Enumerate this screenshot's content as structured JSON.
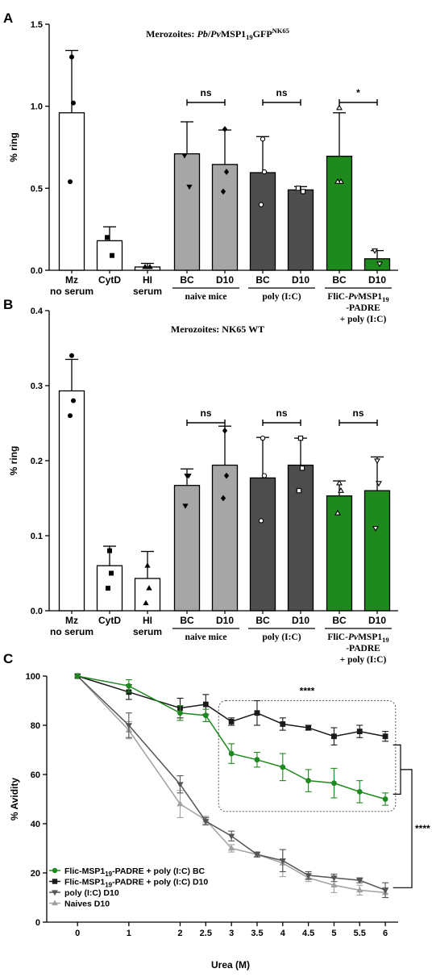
{
  "chart_data": [
    {
      "panel": "A",
      "type": "bar",
      "title": "Merozoites: Pb/PvMSP1₁₉GFPᴺᴷ⁶⁵",
      "title_parts": [
        "Merozoites: ",
        "Pb",
        "/",
        "Pv",
        "MSP1",
        "19",
        "GFP",
        "NK65"
      ],
      "ylabel": "% ring",
      "ylim": [
        0,
        1.5
      ],
      "yticks": [
        "0.0",
        "0.5",
        "1.0",
        "1.5"
      ],
      "categories": [
        {
          "label": "Mz",
          "label2": "no serum",
          "value": 0.96,
          "err": 0.38,
          "color": "#ffffff",
          "marker": "circle",
          "points": [
            1.3,
            1.02,
            0.54
          ]
        },
        {
          "label": "CytD",
          "label2": "",
          "value": 0.18,
          "err": 0.085,
          "color": "#ffffff",
          "marker": "square",
          "points": [
            0.2,
            0.09
          ]
        },
        {
          "label": "HI",
          "label2": "serum",
          "value": 0.02,
          "err": 0.022,
          "color": "#ffffff",
          "marker": "triangle",
          "points": [
            0.02,
            0.02
          ]
        },
        {
          "label": "BC",
          "label2": "",
          "value": 0.71,
          "err": 0.195,
          "color": "#a6a6a6",
          "marker": "tri-down",
          "points": [
            0.7,
            0.51
          ]
        },
        {
          "label": "D10",
          "label2": "",
          "value": 0.645,
          "err": 0.21,
          "color": "#a6a6a6",
          "marker": "diamond",
          "points": [
            0.86,
            0.6,
            0.48
          ]
        },
        {
          "label": "BC",
          "label2": "",
          "value": 0.595,
          "err": 0.22,
          "color": "#4d4d4d",
          "marker": "open-circle",
          "points": [
            0.8,
            0.6,
            0.4
          ]
        },
        {
          "label": "D10",
          "label2": "",
          "value": 0.49,
          "err": 0.02,
          "color": "#4d4d4d",
          "marker": "open-square",
          "points": [
            0.5,
            0.48
          ]
        },
        {
          "label": "BC",
          "label2": "",
          "value": 0.695,
          "err": 0.265,
          "color": "#1e8a1e",
          "marker": "open-triangle",
          "points": [
            0.99,
            0.54,
            0.54
          ]
        },
        {
          "label": "D10",
          "label2": "",
          "value": 0.07,
          "err": 0.05,
          "color": "#1e8a1e",
          "marker": "open-tri-down",
          "points": [
            0.12,
            0.04
          ]
        }
      ],
      "groups": [
        {
          "text": "naive mice",
          "from": 3,
          "to": 4
        },
        {
          "text": "poly (I:C)",
          "from": 5,
          "to": 6
        },
        {
          "text": "FliC-PvMSP1₁₉ -PADRE + poly (I:C)",
          "from": 7,
          "to": 8,
          "line1": [
            "FliC-",
            "Pv",
            "MSP1",
            "19"
          ],
          "line2": "-PADRE",
          "line3": "+ poly (I:C)"
        }
      ],
      "significance": [
        {
          "from": 3,
          "to": 4,
          "text": "ns"
        },
        {
          "from": 5,
          "to": 6,
          "text": "ns"
        },
        {
          "from": 7,
          "to": 8,
          "text": "*"
        }
      ]
    },
    {
      "panel": "B",
      "type": "bar",
      "title": "Merozoites: NK65 WT",
      "ylabel": "% ring",
      "ylim": [
        0,
        0.4
      ],
      "yticks": [
        "0.0",
        "0.1",
        "0.2",
        "0.3",
        "0.4"
      ],
      "categories": [
        {
          "label": "Mz",
          "label2": "no serum",
          "value": 0.293,
          "err": 0.042,
          "color": "#ffffff",
          "marker": "circle",
          "points": [
            0.34,
            0.28,
            0.26
          ]
        },
        {
          "label": "CytD",
          "label2": "",
          "value": 0.06,
          "err": 0.026,
          "color": "#ffffff",
          "marker": "square",
          "points": [
            0.08,
            0.05,
            0.03
          ]
        },
        {
          "label": "HI",
          "label2": "serum",
          "value": 0.043,
          "err": 0.036,
          "color": "#ffffff",
          "marker": "triangle",
          "points": [
            0.06,
            0.03,
            0.01
          ]
        },
        {
          "label": "BC",
          "label2": "",
          "value": 0.167,
          "err": 0.022,
          "color": "#a6a6a6",
          "marker": "tri-down",
          "points": [
            0.18,
            0.18,
            0.14
          ]
        },
        {
          "label": "D10",
          "label2": "",
          "value": 0.194,
          "err": 0.052,
          "color": "#a6a6a6",
          "marker": "diamond",
          "points": [
            0.24,
            0.18,
            0.15
          ]
        },
        {
          "label": "BC",
          "label2": "",
          "value": 0.177,
          "err": 0.054,
          "color": "#4d4d4d",
          "marker": "open-circle",
          "points": [
            0.23,
            0.18,
            0.12
          ]
        },
        {
          "label": "D10",
          "label2": "",
          "value": 0.194,
          "err": 0.036,
          "color": "#4d4d4d",
          "marker": "open-square",
          "points": [
            0.23,
            0.19,
            0.16
          ]
        },
        {
          "label": "BC",
          "label2": "",
          "value": 0.153,
          "err": 0.02,
          "color": "#1e8a1e",
          "marker": "open-triangle",
          "points": [
            0.17,
            0.16,
            0.13
          ]
        },
        {
          "label": "D10",
          "label2": "",
          "value": 0.16,
          "err": 0.045,
          "color": "#1e8a1e",
          "marker": "open-tri-down",
          "points": [
            0.2,
            0.17,
            0.11
          ]
        }
      ],
      "groups": [
        {
          "text": "naive mice",
          "from": 3,
          "to": 4
        },
        {
          "text": "poly (I:C)",
          "from": 5,
          "to": 6
        },
        {
          "text": "FliC-PvMSP1₁₉ -PADRE + poly (I:C)",
          "from": 7,
          "to": 8,
          "line1": [
            "FliC-",
            "Pv",
            "MSP1",
            "19"
          ],
          "line2": "-PADRE",
          "line3": "+ poly (I:C)"
        }
      ],
      "significance": [
        {
          "from": 3,
          "to": 4,
          "text": "ns"
        },
        {
          "from": 5,
          "to": 6,
          "text": "ns"
        },
        {
          "from": 7,
          "to": 8,
          "text": "ns"
        }
      ]
    },
    {
      "panel": "C",
      "type": "line",
      "xlabel": "Urea (M)",
      "ylabel": "% Avidity",
      "xlim": [
        -0.6,
        6.25
      ],
      "ylim": [
        0,
        100
      ],
      "xticks": [
        0,
        1,
        2,
        2.5,
        3,
        3.5,
        4,
        4.5,
        5,
        5.5,
        6
      ],
      "yticks": [
        0,
        20,
        40,
        60,
        80,
        100
      ],
      "x": [
        0,
        1,
        2,
        2.5,
        3,
        3.5,
        4,
        4.5,
        5,
        5.5,
        6
      ],
      "series": [
        {
          "name": "Flic-MSP1₁₉-PADRE + poly (I:C) BC",
          "legend_parts": [
            "Flic-MSP1",
            "19",
            "-PADRE + poly (I:C) BC"
          ],
          "color": "#1e8a1e",
          "marker": "circle",
          "values": [
            100,
            96,
            85,
            84,
            68.5,
            66,
            63,
            57.5,
            56.5,
            53,
            50
          ],
          "err": [
            0,
            2.5,
            3,
            2.5,
            4,
            3,
            5.5,
            4.5,
            6,
            4.5,
            2.5
          ]
        },
        {
          "name": "Flic-MSP1₁₉-PADRE + poly (I:C) D10",
          "legend_parts": [
            "Flic-MSP1",
            "19",
            "-PADRE + poly (I:C) D10"
          ],
          "color": "#1a1a1a",
          "marker": "square",
          "values": [
            100,
            93.5,
            87,
            88.5,
            81.5,
            85,
            80.5,
            79,
            75.5,
            77.5,
            75.5
          ],
          "err": [
            0,
            3,
            4,
            4,
            1.5,
            5,
            2.5,
            1,
            3.5,
            2.5,
            2
          ]
        },
        {
          "name": "poly (I:C) D10",
          "color": "#555555",
          "marker": "tri-down",
          "values": [
            100,
            80,
            56,
            41,
            35,
            27.5,
            25,
            19,
            18,
            17,
            13
          ],
          "err": [
            0,
            5,
            3.5,
            1.5,
            2,
            1,
            4.5,
            1.5,
            1.5,
            1,
            3
          ]
        },
        {
          "name": "Naives D10",
          "color": "#a0a0a0",
          "marker": "triangle",
          "values": [
            100,
            78,
            48,
            41.5,
            30,
            27.5,
            24,
            18,
            15,
            13,
            12
          ],
          "err": [
            0,
            3.5,
            5.5,
            1.5,
            1.5,
            1,
            5.5,
            1.5,
            3,
            2,
            2
          ]
        }
      ],
      "annotations": [
        {
          "text": "****",
          "where": "above dotted box"
        },
        {
          "text": "****",
          "where": "right bracket"
        }
      ]
    }
  ]
}
